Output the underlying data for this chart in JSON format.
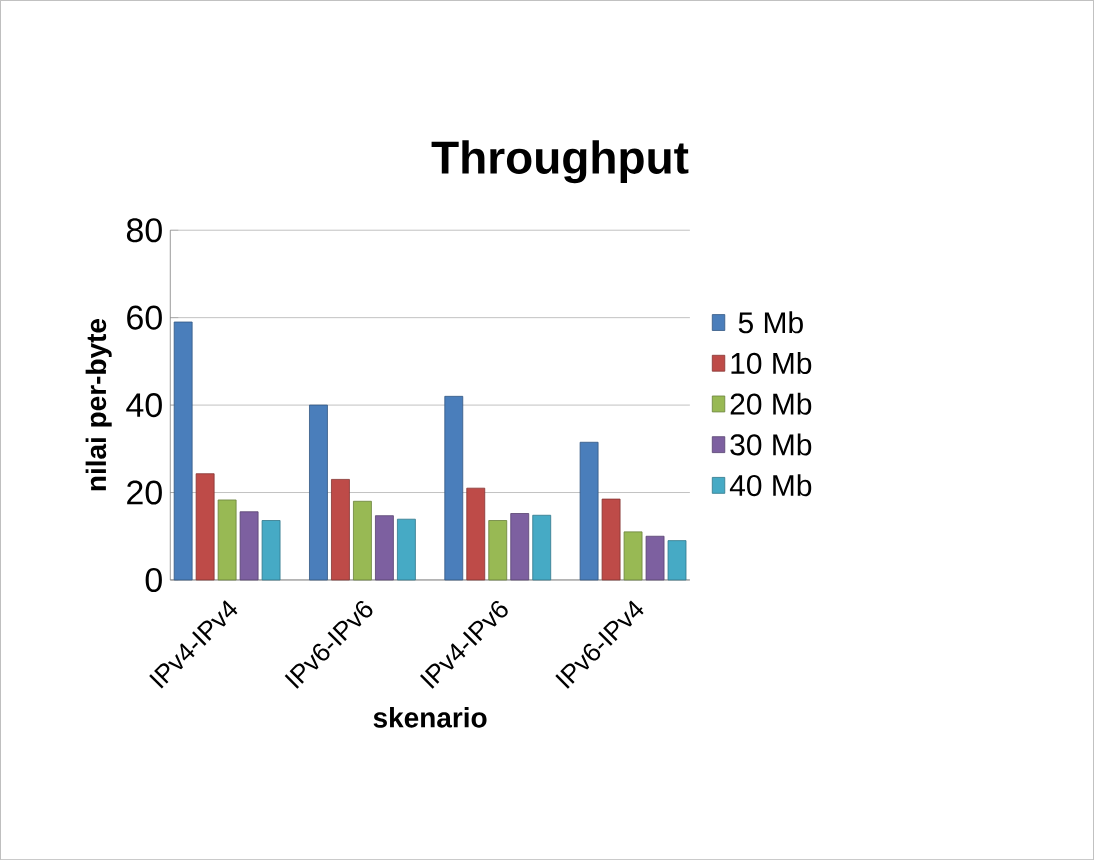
{
  "chart_data": {
    "type": "bar",
    "title": "Throughput",
    "xlabel": "skenario",
    "ylabel": "nilai per-byte",
    "categories": [
      "IPv4-IPv4",
      "IPv6-IPv6",
      "IPv4-IPv6",
      "IPv6-IPv4"
    ],
    "series": [
      {
        "name": "5 Mb",
        "color": "#4a7ebb",
        "values": [
          59,
          40,
          42,
          31.5
        ]
      },
      {
        "name": "10 Mb",
        "color": "#be4b48",
        "values": [
          24.3,
          23,
          21,
          18.5
        ]
      },
      {
        "name": "20 Mb",
        "color": "#98b954",
        "values": [
          18.3,
          18,
          13.6,
          11
        ]
      },
      {
        "name": "30 Mb",
        "color": "#7d60a0",
        "values": [
          15.6,
          14.7,
          15.2,
          10
        ]
      },
      {
        "name": "40 Mb",
        "color": "#46aac5",
        "values": [
          13.6,
          13.9,
          14.8,
          9
        ]
      }
    ],
    "ylim": [
      0,
      80
    ],
    "yticks": [
      0,
      20,
      40,
      60,
      80
    ],
    "grid": "y",
    "legend": "right"
  }
}
